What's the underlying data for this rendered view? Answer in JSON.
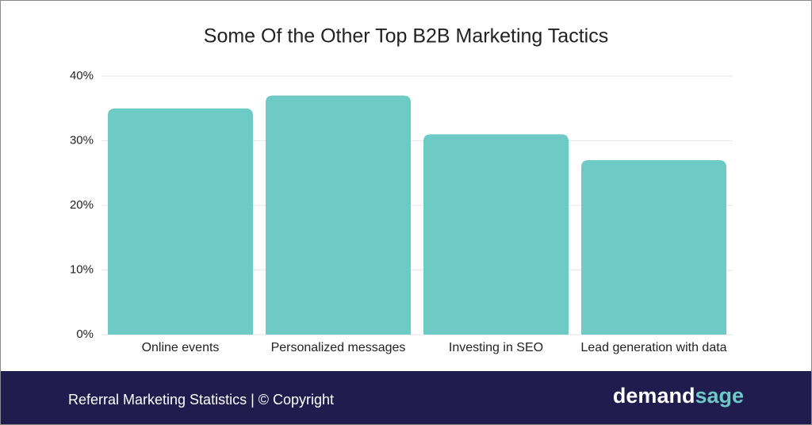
{
  "chart_data": {
    "type": "bar",
    "title": "Some Of the Other Top B2B Marketing Tactics",
    "categories": [
      "Online events",
      "Personalized messages",
      "Investing in SEO",
      "Lead generation with data"
    ],
    "values": [
      35,
      37,
      31,
      27
    ],
    "color": "#6ecac5",
    "ylim": [
      0,
      40
    ],
    "yticks": [
      {
        "value": 0,
        "label": "0%"
      },
      {
        "value": 10,
        "label": "10%"
      },
      {
        "value": 20,
        "label": "20%"
      },
      {
        "value": 30,
        "label": "30%"
      },
      {
        "value": 40,
        "label": "40%"
      }
    ],
    "grid": true
  },
  "footer": {
    "text": "Referral Marketing Statistics | © Copyright",
    "brand": [
      "demand",
      "sage"
    ]
  }
}
